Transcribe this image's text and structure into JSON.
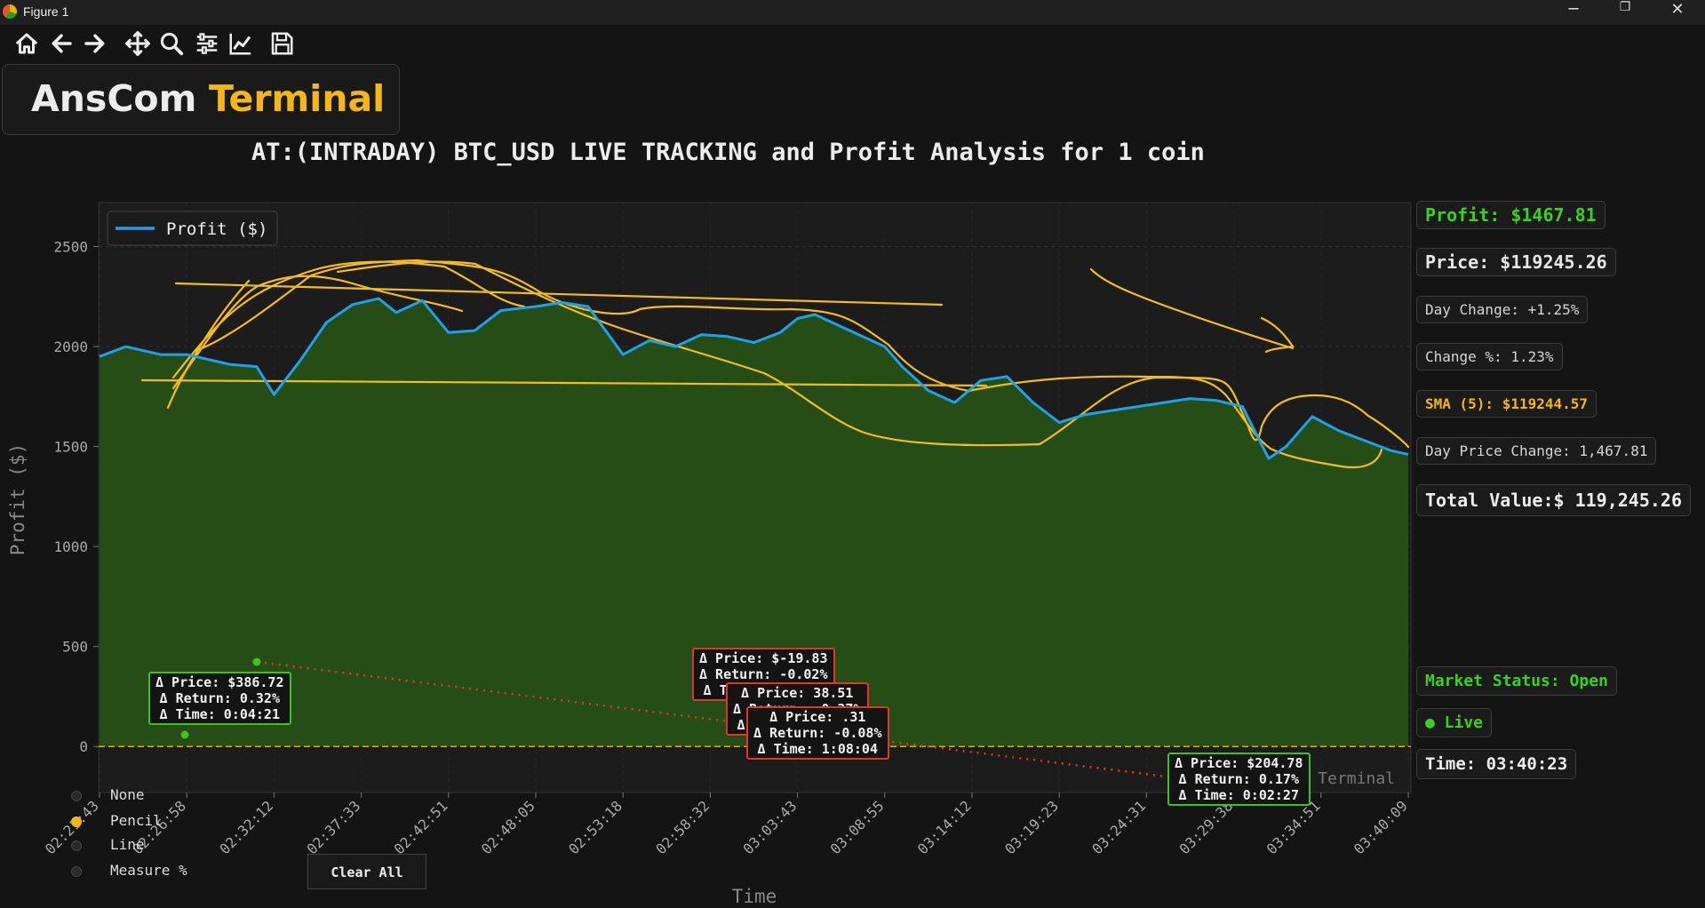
{
  "window": {
    "title": "Figure 1",
    "minimize": "─",
    "maximize": "❐",
    "close": "✕"
  },
  "toolbar": [
    "home-icon",
    "back-icon",
    "forward-icon",
    "pan-icon",
    "zoom-icon",
    "configure-icon",
    "edit-axis-icon",
    "save-icon"
  ],
  "logo": {
    "part1": "AnsCom",
    "part2": "Terminal"
  },
  "title": "AT:(INTRADAY) BTC_USD LIVE TRACKING and Profit Analysis for 1 coin",
  "chart_data": {
    "type": "area",
    "ylabel": "Profit ($)",
    "xlabel": "Time",
    "ylim": [
      -230,
      2720
    ],
    "yticks": [
      0,
      500,
      1000,
      1500,
      2000,
      2500
    ],
    "xticks": [
      "02:21:43",
      "02:26:58",
      "02:32:12",
      "02:37:33",
      "02:42:51",
      "02:48:05",
      "02:53:18",
      "02:58:32",
      "03:03:43",
      "03:08:55",
      "03:14:12",
      "03:19:23",
      "03:24:31",
      "03:29:38",
      "03:34:51",
      "03:40:09"
    ],
    "legend": {
      "label": "Profit ($)",
      "position": "top-left"
    },
    "series": [
      {
        "name": "Profit ($)",
        "color": "#1ea1e8",
        "fill": "#264d16",
        "t": [
          0,
          0.3,
          0.7,
          1.0,
          1.5,
          1.8,
          2.0,
          2.3,
          2.6,
          2.9,
          3.2,
          3.4,
          3.7,
          4.0,
          4.3,
          4.6,
          5.0,
          5.3,
          5.6,
          6.0,
          6.3,
          6.6,
          6.9,
          7.2,
          7.5,
          7.8,
          8.0,
          8.2,
          8.4,
          8.7,
          9.0,
          9.2,
          9.5,
          9.8,
          10.1,
          10.4,
          10.7,
          11.0,
          11.3,
          11.6,
          11.9,
          12.2,
          12.5,
          12.8,
          13.1,
          13.4,
          13.6,
          13.9,
          14.2,
          14.5,
          14.8,
          15.0
        ],
        "profit": [
          1950,
          2000,
          1960,
          1960,
          1910,
          1900,
          1760,
          1930,
          2120,
          2210,
          2240,
          2170,
          2230,
          2070,
          2080,
          2180,
          2200,
          2220,
          2200,
          1960,
          2030,
          2000,
          2060,
          2050,
          2020,
          2070,
          2140,
          2160,
          2120,
          2060,
          2000,
          1900,
          1780,
          1720,
          1830,
          1850,
          1720,
          1620,
          1660,
          1680,
          1700,
          1720,
          1740,
          1730,
          1700,
          1440,
          1500,
          1650,
          1580,
          1530,
          1480,
          1460
        ]
      }
    ],
    "zero_line": {
      "value": 0,
      "color": "#e0b000"
    },
    "watermark": "Terminal",
    "annotations": [
      {
        "lines": [
          "Δ Price: $386.72",
          "Δ Return: 0.32%",
          "Δ Time: 0:04:21"
        ],
        "color": "#3fc21c"
      },
      {
        "lines": [
          "Δ Price: $-19.83",
          "Δ Return: -0.02%",
          "Δ Time: 0:00:29"
        ],
        "color": "#e0372b"
      },
      {
        "lines": [
          "Δ Price: 38.51",
          "Δ Return: -0.37%",
          "Δ Time: 0:08:15"
        ],
        "color": "#e0372b"
      },
      {
        "lines": [
          "Δ Price: .31",
          "Δ Return: -0.08%",
          "Δ Time: 1:08:04"
        ],
        "color": "#e0372b"
      },
      {
        "lines": [
          "Δ Price: $204.78",
          "Δ Return: 0.17%",
          "Δ Time: 0:02:27"
        ],
        "color": "#3fc21c"
      }
    ]
  },
  "stats": {
    "profit": "Profit: $1467.81",
    "price": "Price: $119245.26",
    "day_change": "Day Change: +1.25%",
    "change_pct": "Change %: 1.23%",
    "sma": "SMA (5): $119244.57",
    "day_price_change": "Day Price Change: 1,467.81",
    "total_value": "Total Value:$ 119,245.26",
    "market_status": "Market Status: Open",
    "live": "● Live",
    "time": "Time: 03:40:23"
  },
  "modes": [
    {
      "label": "None",
      "selected": false
    },
    {
      "label": "Pencil",
      "selected": true
    },
    {
      "label": "Line",
      "selected": false
    },
    {
      "label": "Measure %",
      "selected": false
    }
  ],
  "clear_button": "Clear All",
  "colors": {
    "accent": "#f5b716",
    "profit_text": "#39d21c",
    "line": "#1ea1e8",
    "area": "#264d16"
  }
}
